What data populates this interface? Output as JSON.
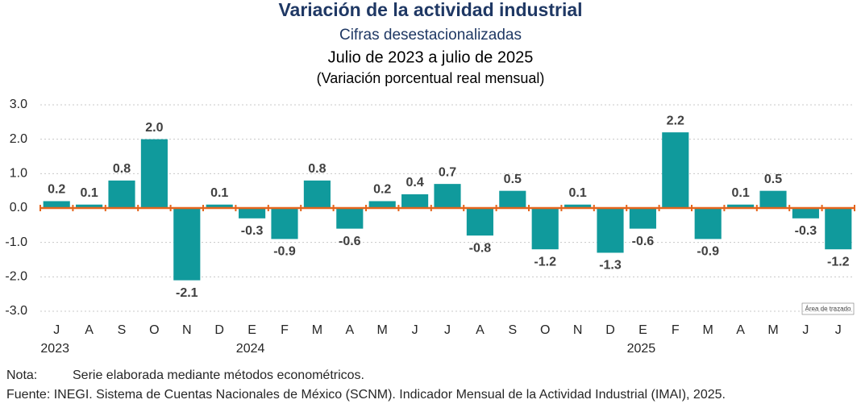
{
  "chart_data": {
    "type": "bar",
    "title": "Variación de la actividad industrial",
    "subtitle": "Cifras desestacionalizadas",
    "period": "Julio de 2023 a julio de 2025",
    "unit": "(Variación porcentual real mensual)",
    "categories": [
      "J",
      "A",
      "S",
      "O",
      "N",
      "D",
      "E",
      "F",
      "M",
      "A",
      "M",
      "J",
      "J",
      "A",
      "S",
      "O",
      "N",
      "D",
      "E",
      "F",
      "M",
      "A",
      "M",
      "J",
      "J"
    ],
    "years": [
      "2023",
      null,
      null,
      null,
      null,
      null,
      "2024",
      null,
      null,
      null,
      null,
      null,
      null,
      null,
      null,
      null,
      null,
      null,
      "2025",
      null,
      null,
      null,
      null,
      null,
      null
    ],
    "values": [
      0.2,
      0.1,
      0.8,
      2.0,
      -2.1,
      0.1,
      -0.3,
      -0.9,
      0.8,
      -0.6,
      0.2,
      0.4,
      0.7,
      -0.8,
      0.5,
      -1.2,
      0.1,
      -1.3,
      -0.6,
      2.2,
      -0.9,
      0.1,
      0.5,
      -0.3,
      -1.2
    ],
    "value_labels": [
      "0.2",
      "0.1",
      "0.8",
      "2.0",
      "-2.1",
      "0.1",
      "-0.3",
      "-0.9",
      "0.8",
      "-0.6",
      "0.2",
      "0.4",
      "0.7",
      "-0.8",
      "0.5",
      "-1.2",
      "0.1",
      "-1.3",
      "-0.6",
      "2.2",
      "-0.9",
      "0.1",
      "0.5",
      "-0.3",
      "-1.2"
    ],
    "color": "#109a9c",
    "zero_line_color": "#e5651c",
    "ylim": [
      -3,
      3
    ],
    "yticks": [
      {
        "value": -3,
        "label": "-3.0"
      },
      {
        "value": -2,
        "label": "-2.0"
      },
      {
        "value": -1,
        "label": "-1.0"
      },
      {
        "value": 0,
        "label": "0.0"
      },
      {
        "value": 1,
        "label": "1.0"
      },
      {
        "value": 2,
        "label": "2.0"
      },
      {
        "value": 3,
        "label": "3.0"
      }
    ],
    "grid": true,
    "tooltip": "Área de trazado",
    "note_label": "Nota:",
    "note": "Serie elaborada mediante métodos econométricos.",
    "source": "Fuente: INEGI. Sistema de Cuentas Nacionales de México (SCNM). Indicador Mensual de la Actividad Industrial (IMAI), 2025."
  }
}
